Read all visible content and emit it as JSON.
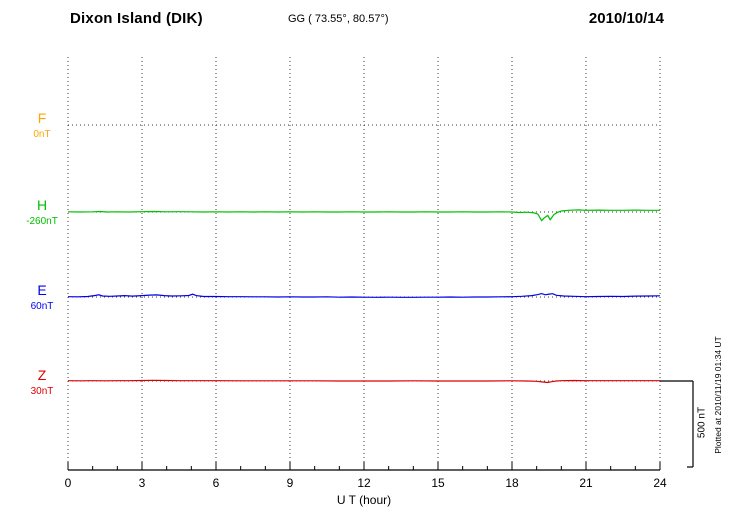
{
  "header": {
    "station": "Dixon Island (DIK)",
    "coords": "GG ( 73.55°,  80.57°)",
    "date": "2010/10/14"
  },
  "axis": {
    "xlabel": "U T (hour)",
    "ticks": [
      "0",
      "3",
      "6",
      "9",
      "12",
      "15",
      "18",
      "21",
      "24"
    ]
  },
  "scale_bar_label": "500 nT",
  "plotted_at": "Plotted at 2010/11/19 01:34 UT",
  "chart_data": {
    "type": "line",
    "title": "Dixon Island (DIK) magnetogram 2010/10/14",
    "x_unit": "hour",
    "x_range": [
      0,
      24
    ],
    "x_ticks": [
      0,
      3,
      6,
      9,
      12,
      15,
      18,
      21,
      24
    ],
    "xlabel": "U T (hour)",
    "scale_nT": 500,
    "grid": "dotted",
    "series": [
      {
        "name": "F",
        "baseline_label": "0nT",
        "color": "#FFA500",
        "points": []
      },
      {
        "name": "H",
        "baseline_label": "-260nT",
        "color": "#00C000",
        "points": [
          [
            0,
            1
          ],
          [
            0.5,
            0
          ],
          [
            1,
            1
          ],
          [
            1.3,
            3
          ],
          [
            1.6,
            0
          ],
          [
            2,
            1
          ],
          [
            2.5,
            0
          ],
          [
            3,
            2
          ],
          [
            3.5,
            3
          ],
          [
            4,
            1
          ],
          [
            4.5,
            2
          ],
          [
            5,
            1
          ],
          [
            5.5,
            0
          ],
          [
            6,
            1
          ],
          [
            6.5,
            0
          ],
          [
            7,
            1
          ],
          [
            7.5,
            0
          ],
          [
            8,
            1
          ],
          [
            8.5,
            0
          ],
          [
            9,
            1
          ],
          [
            9.5,
            0
          ],
          [
            10,
            1
          ],
          [
            10.5,
            0
          ],
          [
            11,
            0
          ],
          [
            11.5,
            1
          ],
          [
            12,
            0
          ],
          [
            12.5,
            0
          ],
          [
            13,
            1
          ],
          [
            13.5,
            0
          ],
          [
            14,
            0
          ],
          [
            14.5,
            1
          ],
          [
            15,
            0
          ],
          [
            15.5,
            0
          ],
          [
            16,
            1
          ],
          [
            16.5,
            0
          ],
          [
            17,
            0
          ],
          [
            17.5,
            1
          ],
          [
            18,
            0
          ],
          [
            18.3,
            -3
          ],
          [
            18.6,
            -1
          ],
          [
            18.9,
            -5
          ],
          [
            19.05,
            -12
          ],
          [
            19.2,
            -50
          ],
          [
            19.3,
            -35
          ],
          [
            19.45,
            -20
          ],
          [
            19.55,
            -45
          ],
          [
            19.7,
            -15
          ],
          [
            19.85,
            -2
          ],
          [
            20,
            6
          ],
          [
            20.3,
            10
          ],
          [
            20.7,
            12
          ],
          [
            21,
            10
          ],
          [
            21.5,
            11
          ],
          [
            22,
            10
          ],
          [
            22.5,
            10
          ],
          [
            23,
            11
          ],
          [
            23.5,
            10
          ],
          [
            24,
            10
          ]
        ]
      },
      {
        "name": "E",
        "baseline_label": "60nT",
        "color": "#0000EE",
        "points": [
          [
            0,
            2
          ],
          [
            0.4,
            1
          ],
          [
            0.8,
            3
          ],
          [
            1.1,
            9
          ],
          [
            1.25,
            13
          ],
          [
            1.4,
            6
          ],
          [
            1.7,
            4
          ],
          [
            2,
            6
          ],
          [
            2.3,
            8
          ],
          [
            2.6,
            5
          ],
          [
            3,
            8
          ],
          [
            3.3,
            11
          ],
          [
            3.6,
            12
          ],
          [
            3.9,
            8
          ],
          [
            4.2,
            6
          ],
          [
            4.6,
            7
          ],
          [
            4.9,
            9
          ],
          [
            5.05,
            16
          ],
          [
            5.2,
            8
          ],
          [
            5.5,
            3
          ],
          [
            6,
            3
          ],
          [
            6.5,
            2
          ],
          [
            7,
            2
          ],
          [
            7.5,
            1
          ],
          [
            8,
            1
          ],
          [
            8.5,
            0
          ],
          [
            9,
            1
          ],
          [
            9.5,
            0
          ],
          [
            10,
            0
          ],
          [
            10.5,
            1
          ],
          [
            11,
            -1
          ],
          [
            11.5,
            0
          ],
          [
            12,
            -1
          ],
          [
            12.5,
            -2
          ],
          [
            13,
            -1
          ],
          [
            13.5,
            -2
          ],
          [
            14,
            -2
          ],
          [
            14.5,
            -1
          ],
          [
            15,
            -1
          ],
          [
            15.5,
            0
          ],
          [
            16,
            -1
          ],
          [
            16.5,
            0
          ],
          [
            17,
            0
          ],
          [
            17.5,
            1
          ],
          [
            18,
            2
          ],
          [
            18.4,
            4
          ],
          [
            18.8,
            8
          ],
          [
            19.05,
            14
          ],
          [
            19.2,
            20
          ],
          [
            19.35,
            13
          ],
          [
            19.5,
            17
          ],
          [
            19.65,
            19
          ],
          [
            19.8,
            10
          ],
          [
            20.1,
            6
          ],
          [
            20.5,
            4
          ],
          [
            21,
            2
          ],
          [
            21.5,
            3
          ],
          [
            22,
            4
          ],
          [
            22.5,
            3
          ],
          [
            23,
            5
          ],
          [
            23.5,
            6
          ],
          [
            24,
            7
          ]
        ]
      },
      {
        "name": "Z",
        "baseline_label": "30nT",
        "color": "#DD0000",
        "points": [
          [
            0,
            2
          ],
          [
            0.5,
            1
          ],
          [
            1,
            2
          ],
          [
            1.5,
            1
          ],
          [
            2,
            2
          ],
          [
            2.5,
            2
          ],
          [
            3,
            3
          ],
          [
            3.5,
            4
          ],
          [
            4,
            3
          ],
          [
            4.5,
            2
          ],
          [
            5,
            2
          ],
          [
            5.5,
            2
          ],
          [
            6,
            2
          ],
          [
            7,
            1
          ],
          [
            8,
            1
          ],
          [
            9,
            1
          ],
          [
            10,
            1
          ],
          [
            11,
            0
          ],
          [
            12,
            0
          ],
          [
            13,
            0
          ],
          [
            14,
            1
          ],
          [
            15,
            0
          ],
          [
            16,
            0
          ],
          [
            17,
            0
          ],
          [
            18,
            1
          ],
          [
            18.6,
            0
          ],
          [
            19,
            -2
          ],
          [
            19.25,
            -6
          ],
          [
            19.45,
            -9
          ],
          [
            19.6,
            -4
          ],
          [
            19.8,
            0
          ],
          [
            20,
            2
          ],
          [
            20.5,
            3
          ],
          [
            21,
            2
          ],
          [
            21.5,
            2
          ],
          [
            22,
            2
          ],
          [
            22.5,
            2
          ],
          [
            23,
            2
          ],
          [
            23.5,
            2
          ],
          [
            24,
            2
          ]
        ]
      }
    ]
  }
}
